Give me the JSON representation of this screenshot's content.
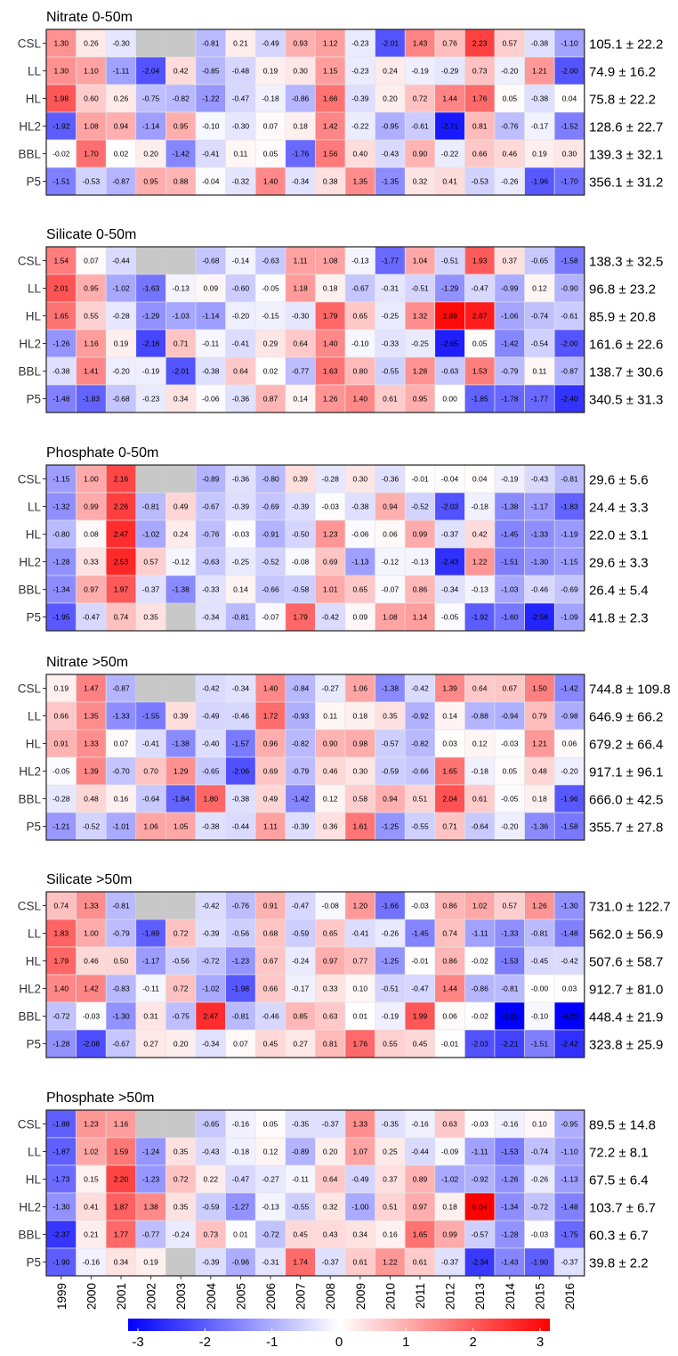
{
  "chart_data": {
    "type": "heatmap",
    "categories": [
      "1999",
      "2000",
      "2001",
      "2002",
      "2003",
      "2004",
      "2005",
      "2006",
      "2007",
      "2008",
      "2009",
      "2010",
      "2011",
      "2012",
      "2013",
      "2014",
      "2015",
      "2016"
    ],
    "rows": [
      "CSL",
      "LL",
      "HL",
      "HL2",
      "BBL",
      "P5"
    ],
    "color_scale": {
      "min": -3,
      "max": 3,
      "ticks": [
        "-3",
        "-2",
        "-1",
        "0",
        "1",
        "2",
        "3"
      ],
      "low_color": "#0000ff",
      "mid_color": "#ffffff",
      "high_color": "#ff0000",
      "missing_color": "#c8c8c8"
    },
    "panels": [
      {
        "title": "Nitrate 0-50m",
        "means": [
          "105.1 ± 22.2",
          "74.9 ± 16.2",
          "75.8 ± 22.2",
          "128.6 ± 22.7",
          "139.3 ± 32.1",
          "356.1 ± 31.2"
        ],
        "values": [
          [
            "1.30",
            "0.26",
            "-0.30",
            null,
            null,
            "-0.81",
            "0.21",
            "-0.49",
            "0.93",
            "1.12",
            "-0.23",
            "-2.01",
            "1.43",
            "0.76",
            "2.23",
            "0.57",
            "-0.38",
            "-1.10"
          ],
          [
            "1.30",
            "1.10",
            "-1.11",
            "-2.04",
            "0.42",
            "-0.85",
            "-0.48",
            "0.19",
            "0.30",
            "1.15",
            "-0.23",
            "0.24",
            "-0.19",
            "-0.29",
            "0.73",
            "-0.20",
            "1.21",
            "-2.00"
          ],
          [
            "1.98",
            "0.60",
            "0.26",
            "-0.75",
            "-0.82",
            "-1.22",
            "-0.47",
            "-0.18",
            "-0.86",
            "1.66",
            "-0.39",
            "0.20",
            "0.72",
            "1.44",
            "1.76",
            "0.05",
            "-0.38",
            "0.04"
          ],
          [
            "-1.92",
            "1.08",
            "0.94",
            "-1.14",
            "0.95",
            "-0.10",
            "-0.30",
            "0.07",
            "0.18",
            "1.42",
            "-0.22",
            "-0.95",
            "-0.61",
            "-2.71",
            "0.81",
            "-0.76",
            "-0.17",
            "-1.52"
          ],
          [
            "-0.02",
            "1.70",
            "0.02",
            "0.20",
            "-1.42",
            "-0.41",
            "0.11",
            "0.05",
            "-1.76",
            "1.56",
            "0.40",
            "-0.43",
            "0.90",
            "-0.22",
            "0.66",
            "0.46",
            "0.19",
            "0.30"
          ],
          [
            "-1.51",
            "-0.53",
            "-0.87",
            "0.95",
            "0.88",
            "-0.04",
            "-0.32",
            "1.40",
            "-0.34",
            "0.38",
            "1.35",
            "-1.35",
            "0.32",
            "0.41",
            "-0.53",
            "-0.26",
            "-1.96",
            "-1.70"
          ]
        ]
      },
      {
        "title": "Silicate 0-50m",
        "means": [
          "138.3 ± 32.5",
          "96.8 ± 23.2",
          "85.9 ± 20.8",
          "161.6 ± 22.6",
          "138.7 ± 30.6",
          "340.5 ± 31.3"
        ],
        "values": [
          [
            "1.54",
            "0.07",
            "-0.44",
            null,
            null,
            "-0.68",
            "-0.14",
            "-0.63",
            "1.11",
            "1.08",
            "-0.13",
            "-1.77",
            "1.04",
            "-0.51",
            "1.93",
            "0.37",
            "-0.65",
            "-1.58"
          ],
          [
            "2.01",
            "0.95",
            "-1.02",
            "-1.63",
            "-0.13",
            "0.09",
            "-0.60",
            "-0.05",
            "1.18",
            "0.18",
            "-0.67",
            "-0.31",
            "-0.51",
            "-1.29",
            "-0.47",
            "-0.99",
            "0.12",
            "-0.90"
          ],
          [
            "1.65",
            "0.55",
            "-0.28",
            "-1.29",
            "-1.03",
            "-1.14",
            "-0.20",
            "-0.15",
            "-0.30",
            "1.79",
            "0.65",
            "-0.25",
            "1.32",
            "2.89",
            "2.67",
            "-1.06",
            "-0.74",
            "-0.61"
          ],
          [
            "-1.26",
            "1.16",
            "0.19",
            "-2.18",
            "0.71",
            "-0.11",
            "-0.41",
            "0.29",
            "0.64",
            "1.40",
            "-0.10",
            "-0.33",
            "-0.25",
            "-2.65",
            "0.05",
            "-1.42",
            "-0.54",
            "-2.00"
          ],
          [
            "-0.38",
            "1.41",
            "-0.20",
            "-0.19",
            "-2.01",
            "-0.38",
            "0.64",
            "0.02",
            "-0.77",
            "1.63",
            "0.80",
            "-0.55",
            "1.28",
            "-0.63",
            "1.53",
            "-0.79",
            "0.11",
            "-0.87"
          ],
          [
            "-1.48",
            "-1.83",
            "-0.68",
            "-0.23",
            "0.34",
            "-0.06",
            "-0.36",
            "0.87",
            "0.14",
            "1.26",
            "1.40",
            "0.61",
            "0.95",
            "0.00",
            "-1.85",
            "-1.78",
            "-1.77",
            "-2.40"
          ]
        ]
      },
      {
        "title": "Phosphate 0-50m",
        "means": [
          "29.6 ± 5.6",
          "24.4 ± 3.3",
          "22.0 ± 3.1",
          "29.6 ± 3.3",
          "26.4 ± 5.4",
          "41.8 ± 2.3"
        ],
        "values": [
          [
            "-1.15",
            "1.00",
            "2.16",
            null,
            null,
            "-0.89",
            "-0.36",
            "-0.80",
            "0.39",
            "-0.28",
            "0.30",
            "-0.36",
            "-0.01",
            "-0.04",
            "0.04",
            "-0.19",
            "-0.43",
            "-0.81"
          ],
          [
            "-1.32",
            "0.99",
            "2.26",
            "-0.81",
            "0.49",
            "-0.67",
            "-0.39",
            "-0.69",
            "-0.39",
            "-0.03",
            "-0.38",
            "0.94",
            "-0.52",
            "-2.03",
            "-0.18",
            "-1.38",
            "-1.17",
            "-1.83"
          ],
          [
            "-0.80",
            "0.08",
            "2.47",
            "-1.02",
            "0.24",
            "-0.76",
            "-0.03",
            "-0.91",
            "-0.50",
            "1.23",
            "-0.06",
            "0.06",
            "0.99",
            "-0.37",
            "0.42",
            "-1.45",
            "-1.33",
            "-1.19"
          ],
          [
            "-1.28",
            "0.33",
            "2.53",
            "0.57",
            "-0.12",
            "-0.63",
            "-0.25",
            "-0.52",
            "-0.08",
            "0.69",
            "-1.13",
            "-0.12",
            "-0.13",
            "-2.43",
            "1.22",
            "-1.51",
            "-1.30",
            "-1.15"
          ],
          [
            "-1.34",
            "0.97",
            "1.97",
            "-0.37",
            "-1.38",
            "-0.33",
            "0.14",
            "-0.66",
            "-0.58",
            "1.01",
            "0.65",
            "-0.07",
            "0.86",
            "-0.34",
            "-0.13",
            "-1.03",
            "-0.46",
            "-0.69"
          ],
          [
            "-1.95",
            "-0.47",
            "0.74",
            "0.35",
            null,
            "-0.34",
            "-0.81",
            "-0.07",
            "1.79",
            "-0.42",
            "0.09",
            "1.08",
            "1.14",
            "-0.05",
            "-1.92",
            "-1.60",
            "-2.58",
            "-1.09"
          ]
        ]
      },
      {
        "title": "Nitrate >50m",
        "means": [
          "744.8 ± 109.8",
          "646.9 ± 66.2",
          "679.2 ± 66.4",
          "917.1 ± 96.1",
          "666.0 ± 42.5",
          "355.7 ± 27.8"
        ],
        "values": [
          [
            "0.19",
            "1.47",
            "-0.87",
            null,
            null,
            "-0.42",
            "-0.34",
            "1.40",
            "-0.84",
            "-0.27",
            "1.06",
            "-1.38",
            "-0.42",
            "1.39",
            "0.64",
            "0.67",
            "1.50",
            "-1.42"
          ],
          [
            "0.66",
            "1.35",
            "-1.33",
            "-1.55",
            "0.39",
            "-0.49",
            "-0.46",
            "1.72",
            "-0.93",
            "0.11",
            "0.18",
            "0.35",
            "-0.92",
            "0.14",
            "-0.88",
            "-0.94",
            "0.79",
            "-0.98"
          ],
          [
            "0.91",
            "1.33",
            "0.07",
            "-0.41",
            "-1.38",
            "-0.40",
            "-1.57",
            "0.96",
            "-0.82",
            "0.90",
            "0.98",
            "-0.57",
            "-0.82",
            "0.03",
            "0.12",
            "-0.03",
            "1.21",
            "0.06"
          ],
          [
            "-0.05",
            "1.39",
            "-0.70",
            "0.70",
            "1.29",
            "-0.65",
            "-2.06",
            "0.69",
            "-0.79",
            "0.46",
            "0.30",
            "-0.59",
            "-0.66",
            "1.65",
            "-0.18",
            "0.05",
            "0.48",
            "-0.20"
          ],
          [
            "-0.28",
            "0.48",
            "0.16",
            "-0.64",
            "-1.84",
            "1.80",
            "-0.38",
            "0.49",
            "-1.42",
            "0.12",
            "0.58",
            "0.94",
            "0.51",
            "2.04",
            "0.61",
            "-0.05",
            "0.18",
            "-1.96"
          ],
          [
            "-1.21",
            "-0.52",
            "-1.01",
            "1.06",
            "1.05",
            "-0.38",
            "-0.44",
            "1.11",
            "-0.39",
            "0.36",
            "1.61",
            "-1.25",
            "-0.55",
            "0.71",
            "-0.64",
            "-0.20",
            "-1.36",
            "-1.58"
          ]
        ]
      },
      {
        "title": "Silicate >50m",
        "means": [
          "731.0 ± 122.7",
          "562.0 ± 56.9",
          "507.6 ± 58.7",
          "912.7 ± 81.0",
          "448.4 ± 21.9",
          "323.8 ± 25.9"
        ],
        "values": [
          [
            "0.74",
            "1.33",
            "-0.81",
            null,
            null,
            "-0.42",
            "-0.76",
            "0.91",
            "-0.47",
            "-0.08",
            "1.20",
            "-1.66",
            "-0.03",
            "0.86",
            "1.02",
            "0.57",
            "1.26",
            "-1.30"
          ],
          [
            "1.83",
            "1.00",
            "-0.79",
            "-1.89",
            "0.72",
            "-0.39",
            "-0.56",
            "0.68",
            "-0.59",
            "0.65",
            "-0.41",
            "-0.26",
            "-1.45",
            "0.74",
            "-1.11",
            "-1.33",
            "-0.81",
            "-1.48"
          ],
          [
            "1.79",
            "0.46",
            "0.50",
            "-1.17",
            "-0.56",
            "-0.72",
            "-1.23",
            "0.67",
            "-0.24",
            "0.97",
            "0.77",
            "-1.25",
            "-0.01",
            "0.86",
            "-0.02",
            "-1.53",
            "-0.45",
            "-0.42"
          ],
          [
            "1.40",
            "1.42",
            "-0.83",
            "-0.11",
            "0.72",
            "-1.02",
            "-1.98",
            "0.66",
            "-0.17",
            "0.33",
            "0.10",
            "-0.51",
            "-0.47",
            "1.44",
            "-0.86",
            "-0.81",
            "-0.00",
            "0.03"
          ],
          [
            "-0.72",
            "-0.03",
            "-1.30",
            "0.31",
            "-0.75",
            "2.47",
            "-0.81",
            "-0.46",
            "0.85",
            "0.63",
            "0.01",
            "-0.19",
            "1.99",
            "0.06",
            "-0.02",
            "-3.13",
            "-0.10",
            "-4.29"
          ],
          [
            "-1.28",
            "-2.08",
            "-0.67",
            "0.27",
            "0.20",
            "-0.34",
            "0.07",
            "0.45",
            "0.27",
            "0.81",
            "1.76",
            "0.55",
            "0.45",
            "-0.01",
            "-2.03",
            "-2.21",
            "-1.51",
            "-2.42"
          ]
        ]
      },
      {
        "title": "Phosphate >50m",
        "means": [
          "89.5 ± 14.8",
          "72.2 ± 8.1",
          "67.5 ± 6.4",
          "103.7 ± 6.7",
          "60.3 ± 6.7",
          "39.8 ± 2.2"
        ],
        "values": [
          [
            "-1.88",
            "1.23",
            "1.16",
            null,
            null,
            "-0.65",
            "-0.16",
            "0.05",
            "-0.35",
            "-0.37",
            "1.33",
            "-0.35",
            "-0.16",
            "0.63",
            "-0.03",
            "-0.16",
            "0.10",
            "-0.95"
          ],
          [
            "-1.87",
            "1.02",
            "1.59",
            "-1.24",
            "0.35",
            "-0.43",
            "-0.18",
            "0.12",
            "-0.89",
            "0.20",
            "1.07",
            "0.25",
            "-0.44",
            "-0.09",
            "-1.11",
            "-1.53",
            "-0.74",
            "-1.10"
          ],
          [
            "-1.73",
            "0.15",
            "2.20",
            "-1.23",
            "0.72",
            "0.22",
            "-0.47",
            "-0.27",
            "-0.11",
            "0.64",
            "-0.49",
            "0.37",
            "0.89",
            "-1.02",
            "-0.92",
            "-1.26",
            "-0.26",
            "-1.13"
          ],
          [
            "-1.30",
            "0.41",
            "1.87",
            "1.38",
            "0.35",
            "-0.59",
            "-1.27",
            "-0.13",
            "-0.55",
            "0.32",
            "-1.00",
            "0.51",
            "0.97",
            "0.18",
            "6.04",
            "-1.34",
            "-0.72",
            "-1.48"
          ],
          [
            "-2.37",
            "0.21",
            "1.77",
            "-0.77",
            "-0.24",
            "0.73",
            "0.01",
            "-0.72",
            "0.45",
            "0.43",
            "0.34",
            "0.16",
            "1.65",
            "0.99",
            "-0.57",
            "-1.28",
            "-0.03",
            "-1.75"
          ],
          [
            "-1.90",
            "-0.16",
            "0.34",
            "0.19",
            null,
            "-0.39",
            "-0.96",
            "-0.31",
            "1.74",
            "-0.37",
            "0.61",
            "1.22",
            "0.61",
            "-0.37",
            "-2.34",
            "-1.43",
            "-1.90",
            "-0.37"
          ]
        ]
      }
    ]
  }
}
